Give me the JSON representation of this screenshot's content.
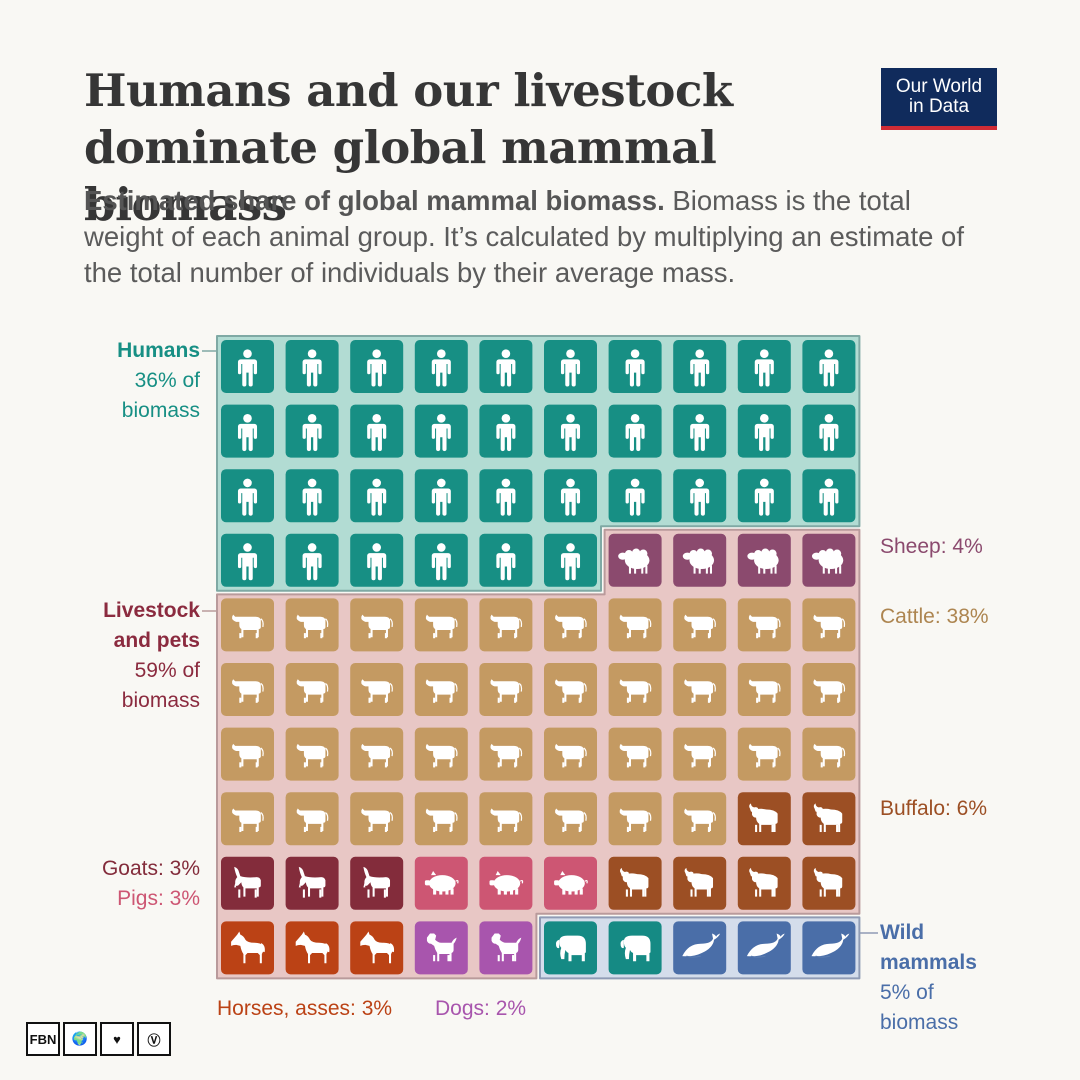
{
  "title": [
    "Humans and our livestock",
    "dominate global mammal biomass"
  ],
  "logo": [
    "Our World",
    "in Data"
  ],
  "subtitle": {
    "bold": "Estimated share of global mammal biomass.",
    "text": " Biomass is the total weight of each animal group. It’s calculated by multiplying an estimate of the total number of individuals by their average mass."
  },
  "colors": {
    "humans": "#178f84",
    "sheep": "#8b4a6e",
    "cattle": "#c49a62",
    "buffalo": "#9c4f24",
    "goats": "#832c3b",
    "pigs": "#cd5673",
    "horses": "#bb4215",
    "dogs": "#a855ad",
    "elephants": "#158a84",
    "whales": "#4a6ea8",
    "humans_bg": "#b2dcd3",
    "livestock_bg": "#e8c7c5",
    "wild_bg": "#d4ddeb",
    "humans_border": "#7fa9a4",
    "livestock_border": "#b99a9b",
    "wild_border": "#8f9bb5"
  },
  "labels": {
    "humans": {
      "name": "Humans",
      "line1": "36% of",
      "line2": "biomass"
    },
    "livestock": {
      "name1": "Livestock",
      "name2": "and pets",
      "line1": "59% of",
      "line2": "biomass"
    },
    "wild": {
      "name1": "Wild",
      "name2": "mammals",
      "line1": "5% of",
      "line2": "biomass"
    },
    "sheep": "Sheep: 4%",
    "cattle": "Cattle: 38%",
    "buffalo": "Buffalo: 6%",
    "goats": "Goats: 3%",
    "pigs": "Pigs: 3%",
    "horses": "Horses, asses: 3%",
    "dogs": "Dogs: 2%"
  },
  "brand_icons": [
    "FBN",
    "globe-icon",
    "heart-icon",
    "vegan-icon"
  ],
  "chart_data": {
    "type": "waffle",
    "grid": {
      "rows": 10,
      "cols": 10,
      "unit": "1% of global mammal biomass"
    },
    "groups": [
      {
        "name": "Humans",
        "share": 36
      },
      {
        "name": "Livestock and pets",
        "share": 59
      },
      {
        "name": "Wild mammals",
        "share": 5
      }
    ],
    "categories": [
      {
        "key": "humans",
        "name": "Humans",
        "group": "Humans",
        "value": 36,
        "icon": "person"
      },
      {
        "key": "sheep",
        "name": "Sheep",
        "group": "Livestock and pets",
        "value": 4,
        "icon": "sheep"
      },
      {
        "key": "cattle",
        "name": "Cattle",
        "group": "Livestock and pets",
        "value": 38,
        "icon": "cow"
      },
      {
        "key": "buffalo",
        "name": "Buffalo",
        "group": "Livestock and pets",
        "value": 6,
        "icon": "buffalo"
      },
      {
        "key": "goats",
        "name": "Goats",
        "group": "Livestock and pets",
        "value": 3,
        "icon": "goat"
      },
      {
        "key": "pigs",
        "name": "Pigs",
        "group": "Livestock and pets",
        "value": 3,
        "icon": "pig"
      },
      {
        "key": "horses",
        "name": "Horses, asses",
        "group": "Livestock and pets",
        "value": 3,
        "icon": "horse"
      },
      {
        "key": "dogs",
        "name": "Dogs",
        "group": "Livestock and pets",
        "value": 2,
        "icon": "dog"
      },
      {
        "key": "elephants",
        "name": "Elephants",
        "group": "Wild mammals",
        "value": 2,
        "icon": "elephant"
      },
      {
        "key": "whales",
        "name": "Whales",
        "group": "Wild mammals",
        "value": 3,
        "icon": "whale"
      }
    ],
    "cell_order": [
      "humans",
      "humans",
      "humans",
      "humans",
      "humans",
      "humans",
      "humans",
      "humans",
      "humans",
      "humans",
      "humans",
      "humans",
      "humans",
      "humans",
      "humans",
      "humans",
      "humans",
      "humans",
      "humans",
      "humans",
      "humans",
      "humans",
      "humans",
      "humans",
      "humans",
      "humans",
      "humans",
      "humans",
      "humans",
      "humans",
      "humans",
      "humans",
      "humans",
      "humans",
      "humans",
      "humans",
      "sheep",
      "sheep",
      "sheep",
      "sheep",
      "cattle",
      "cattle",
      "cattle",
      "cattle",
      "cattle",
      "cattle",
      "cattle",
      "cattle",
      "cattle",
      "cattle",
      "cattle",
      "cattle",
      "cattle",
      "cattle",
      "cattle",
      "cattle",
      "cattle",
      "cattle",
      "cattle",
      "cattle",
      "cattle",
      "cattle",
      "cattle",
      "cattle",
      "cattle",
      "cattle",
      "cattle",
      "cattle",
      "cattle",
      "cattle",
      "cattle",
      "cattle",
      "cattle",
      "cattle",
      "cattle",
      "cattle",
      "cattle",
      "cattle",
      "buffalo",
      "buffalo",
      "goats",
      "goats",
      "goats",
      "pigs",
      "pigs",
      "pigs",
      "buffalo",
      "buffalo",
      "buffalo",
      "buffalo",
      "horses",
      "horses",
      "horses",
      "dogs",
      "dogs",
      "elephants",
      "elephants",
      "whales",
      "whales",
      "whales"
    ]
  }
}
